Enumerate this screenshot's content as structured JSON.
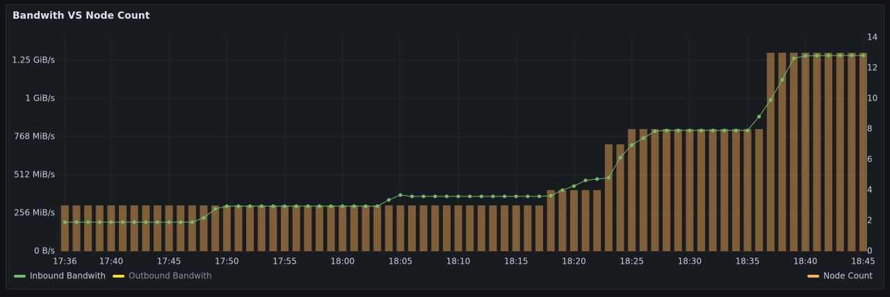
{
  "chart_data": {
    "type": "combo",
    "title": "Bandwith VS Node Count",
    "categories": [
      "17:36",
      null,
      null,
      null,
      "17:40",
      null,
      null,
      null,
      null,
      "17:45",
      null,
      null,
      null,
      null,
      "17:50",
      null,
      null,
      null,
      null,
      "17:55",
      null,
      null,
      null,
      null,
      "18:00",
      null,
      null,
      null,
      null,
      "18:05",
      null,
      null,
      null,
      null,
      "18:10",
      null,
      null,
      null,
      null,
      "18:15",
      null,
      null,
      null,
      null,
      "18:20",
      null,
      null,
      null,
      null,
      "18:25",
      null,
      null,
      null,
      null,
      "18:30",
      null,
      null,
      null,
      null,
      "18:35",
      null,
      null,
      null,
      null,
      "18:40",
      null,
      null,
      null,
      null,
      "18:45"
    ],
    "series": [
      {
        "name": "Node Count",
        "type": "bar",
        "axis": "y2",
        "color": "#ffb357",
        "legend": "right",
        "values": [
          3,
          3,
          3,
          3,
          3,
          3,
          3,
          3,
          3,
          3,
          3,
          3,
          3,
          3,
          3,
          3,
          3,
          3,
          3,
          3,
          3,
          3,
          3,
          3,
          3,
          3,
          3,
          3,
          3,
          3,
          3,
          3,
          3,
          3,
          3,
          3,
          3,
          3,
          3,
          3,
          3,
          3,
          4,
          4,
          4,
          4,
          4,
          7,
          7,
          8,
          8,
          8,
          8,
          8,
          8,
          8,
          8,
          8,
          8,
          8,
          8,
          13,
          13,
          13,
          13,
          13,
          13,
          13,
          13,
          13
        ]
      },
      {
        "name": "Inbound Bandwith",
        "type": "line",
        "color": "#73bf69",
        "legend": "left",
        "values": [
          195,
          195,
          195,
          195,
          195,
          195,
          195,
          195,
          195,
          195,
          195,
          195,
          224,
          284,
          302,
          302,
          302,
          302,
          302,
          302,
          302,
          302,
          302,
          302,
          302,
          302,
          302,
          302,
          344,
          377,
          368,
          368,
          368,
          368,
          368,
          368,
          368,
          368,
          368,
          368,
          368,
          368,
          372,
          410,
          437,
          475,
          484,
          493,
          628,
          712,
          759,
          805,
          810,
          810,
          810,
          810,
          810,
          810,
          810,
          810,
          903,
          1015,
          1150,
          1294,
          1310,
          1312,
          1313,
          1313,
          1313,
          1313
        ]
      },
      {
        "name": "Outbound Bandwith",
        "type": "line",
        "color": "#fade2a",
        "legend": "left",
        "hidden": true
      }
    ],
    "ylim": [
      0,
      1433.6
    ],
    "yticks": [
      {
        "value": 0,
        "label": "0 B/s"
      },
      {
        "value": 256,
        "label": "256 MiB/s"
      },
      {
        "value": 512,
        "label": "512 MiB/s"
      },
      {
        "value": 768,
        "label": "768 MiB/s"
      },
      {
        "value": 1024,
        "label": "1 GiB/s"
      },
      {
        "value": 1280,
        "label": "1.25 GiB/s"
      }
    ],
    "y2lim": [
      0,
      14
    ],
    "y2ticks": [
      0,
      2,
      4,
      6,
      8,
      10,
      12,
      14
    ],
    "grid": true
  }
}
